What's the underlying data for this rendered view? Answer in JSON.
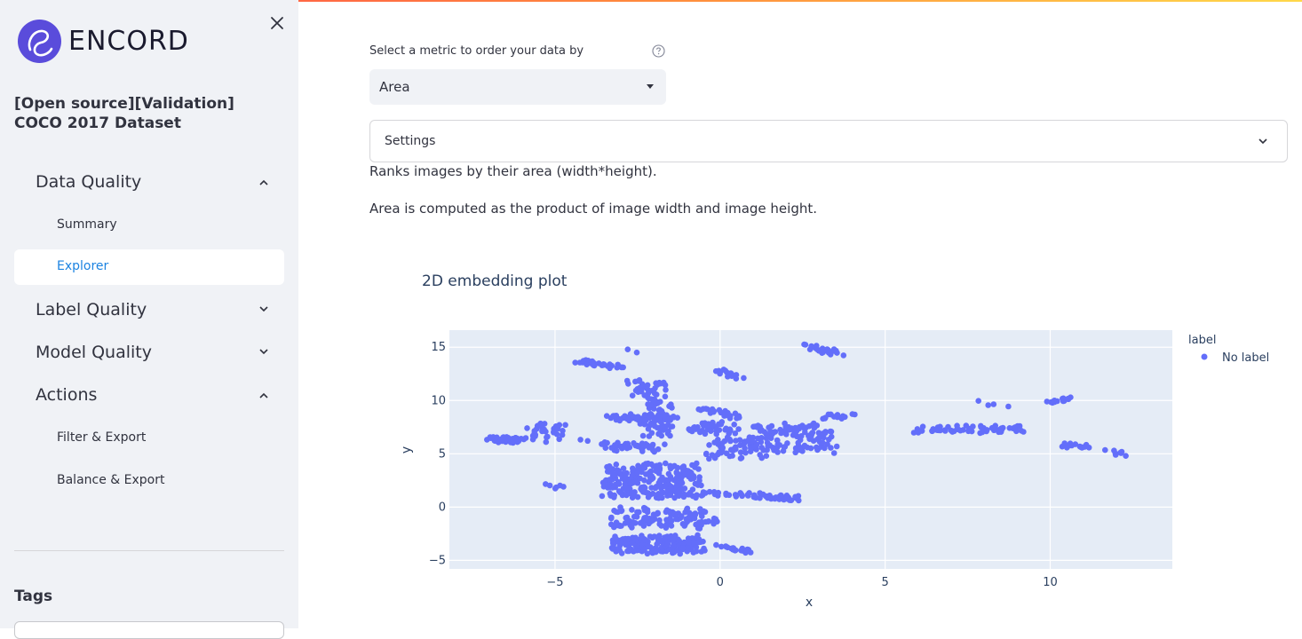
{
  "brand": {
    "name": "ENCORD"
  },
  "sidebar": {
    "dataset_title": "[Open source][Validation] COCO 2017 Dataset",
    "sections": [
      {
        "label": "Data Quality",
        "expanded": true,
        "items": [
          "Summary",
          "Explorer"
        ]
      },
      {
        "label": "Label Quality",
        "expanded": false,
        "items": []
      },
      {
        "label": "Model Quality",
        "expanded": false,
        "items": []
      },
      {
        "label": "Actions",
        "expanded": true,
        "items": [
          "Filter & Export",
          "Balance & Export"
        ]
      }
    ],
    "active_item": "Explorer",
    "tags_label": "Tags"
  },
  "main": {
    "metric_label": "Select a metric to order your data by",
    "metric_value": "Area",
    "settings_label": "Settings",
    "description_1": "Ranks images by their area (width*height).",
    "description_2": "Area is computed as the product of image width and image height."
  },
  "colors": {
    "accent": "#1c83e1",
    "marker": "#636efa",
    "plot_bg": "#e5ecf6",
    "sidebar_bg": "#f0f2f6"
  },
  "chart_data": {
    "type": "scatter",
    "title": "2D embedding plot",
    "xlabel": "x",
    "ylabel": "y",
    "xlim": [
      -8.2,
      13.7
    ],
    "ylim": [
      -5.8,
      16.6
    ],
    "x_ticks": [
      -5,
      0,
      5,
      10
    ],
    "y_ticks": [
      -5,
      0,
      5,
      10,
      15
    ],
    "x_tick_labels": [
      "−5",
      "0",
      "5",
      "10"
    ],
    "y_tick_labels": [
      "−5",
      "0",
      "5",
      "10",
      "15"
    ],
    "grid": true,
    "legend": {
      "title": "label",
      "placement": "top-right",
      "entries": [
        "No label"
      ]
    },
    "series": [
      {
        "name": "No label",
        "clusters": [
          {
            "x": [
              -7.0,
              -6.0
            ],
            "y": [
              6.5,
              6.2
            ],
            "n": 40
          },
          {
            "x": [
              -5.7,
              -4.8
            ],
            "y": [
              7.8,
              6.2
            ],
            "n": 35
          },
          {
            "x": [
              -4.4,
              -3.2
            ],
            "y": [
              6.2,
              6.0
            ],
            "n": 4
          },
          {
            "x": [
              -5.2,
              -4.9
            ],
            "y": [
              2.0,
              1.9
            ],
            "n": 6
          },
          {
            "x": [
              -4.3,
              -3.0
            ],
            "y": [
              13.7,
              13.1
            ],
            "n": 30
          },
          {
            "x": [
              -2.8,
              -2.6
            ],
            "y": [
              14.7,
              14.6
            ],
            "n": 2
          },
          {
            "x": [
              -2.7,
              -1.7
            ],
            "y": [
              11.8,
              10.2
            ],
            "n": 35
          },
          {
            "x": [
              -3.3,
              -1.4
            ],
            "y": [
              8.6,
              8.2
            ],
            "n": 60
          },
          {
            "x": [
              -2.3,
              -1.5
            ],
            "y": [
              10.0,
              6.5
            ],
            "n": 60
          },
          {
            "x": [
              -3.5,
              -1.8
            ],
            "y": [
              6.1,
              5.2
            ],
            "n": 40
          },
          {
            "x": [
              -3.5,
              -0.7
            ],
            "y": [
              4.0,
              0.9
            ],
            "n": 240
          },
          {
            "x": [
              -3.3,
              -0.2
            ],
            "y": [
              -0.2,
              -1.9
            ],
            "n": 120
          },
          {
            "x": [
              -3.3,
              -0.6
            ],
            "y": [
              -2.8,
              -4.2
            ],
            "n": 160
          },
          {
            "x": [
              0.0,
              0.9
            ],
            "y": [
              -3.7,
              -4.1
            ],
            "n": 20
          },
          {
            "x": [
              -1.0,
              1.3
            ],
            "y": [
              1.3,
              1.1
            ],
            "n": 30
          },
          {
            "x": [
              -0.6,
              0.6
            ],
            "y": [
              9.2,
              8.4
            ],
            "n": 25
          },
          {
            "x": [
              -0.9,
              0.4
            ],
            "y": [
              7.9,
              7.0
            ],
            "n": 40
          },
          {
            "x": [
              -0.4,
              1.3
            ],
            "y": [
              6.5,
              4.7
            ],
            "n": 60
          },
          {
            "x": [
              1.0,
              3.4
            ],
            "y": [
              7.8,
              5.2
            ],
            "n": 120
          },
          {
            "x": [
              3.1,
              4.0
            ],
            "y": [
              8.5,
              8.5
            ],
            "n": 15
          },
          {
            "x": [
              -0.1,
              0.6
            ],
            "y": [
              12.8,
              12.2
            ],
            "n": 15
          },
          {
            "x": [
              2.6,
              3.6
            ],
            "y": [
              15.1,
              14.4
            ],
            "n": 25
          },
          {
            "x": [
              1.1,
              2.4
            ],
            "y": [
              1.0,
              0.8
            ],
            "n": 30
          },
          {
            "x": [
              6.0,
              9.2
            ],
            "y": [
              7.5,
              7.1
            ],
            "n": 60
          },
          {
            "x": [
              7.8,
              8.6
            ],
            "y": [
              9.8,
              9.4
            ],
            "n": 4
          },
          {
            "x": [
              9.9,
              10.7
            ],
            "y": [
              9.8,
              10.1
            ],
            "n": 15
          },
          {
            "x": [
              10.3,
              11.2
            ],
            "y": [
              5.8,
              5.6
            ],
            "n": 15
          },
          {
            "x": [
              11.8,
              12.4
            ],
            "y": [
              5.2,
              5.0
            ],
            "n": 8
          }
        ]
      }
    ]
  }
}
